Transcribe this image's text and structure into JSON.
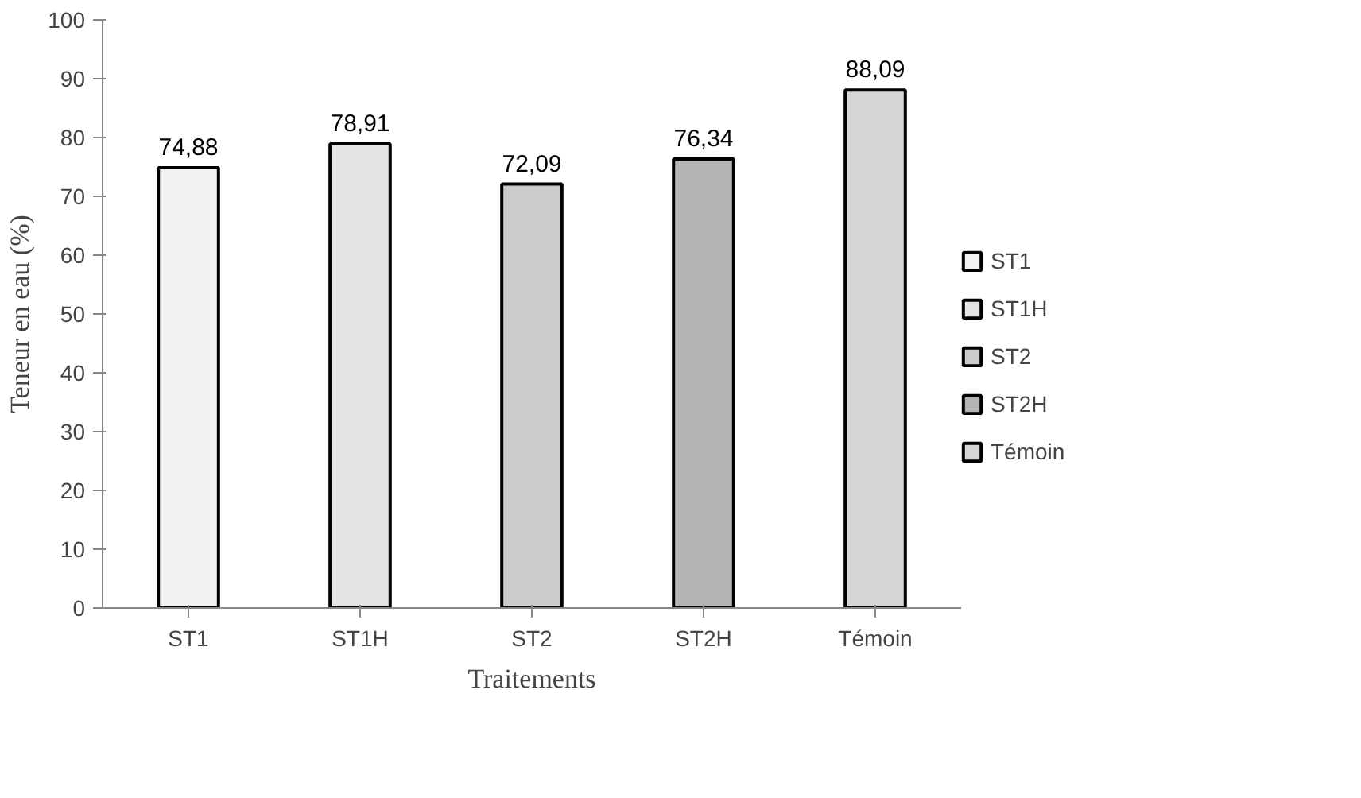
{
  "chart_data": {
    "type": "bar",
    "xlabel": "Traitements",
    "ylabel": "Teneur en eau (%)",
    "categories": [
      "ST1",
      "ST1H",
      "ST2",
      "ST2H",
      "Témoin"
    ],
    "series": [
      {
        "name": "ST1",
        "color": "#f2f2f2",
        "values": [
          74.88,
          null,
          null,
          null,
          null
        ],
        "value_labels": [
          "74,88",
          null,
          null,
          null,
          null
        ]
      },
      {
        "name": "ST1H",
        "color": "#e4e4e4",
        "values": [
          null,
          78.91,
          null,
          null,
          null
        ],
        "value_labels": [
          null,
          "78,91",
          null,
          null,
          null
        ]
      },
      {
        "name": "ST2",
        "color": "#cccccc",
        "values": [
          null,
          null,
          72.09,
          null,
          null
        ],
        "value_labels": [
          null,
          null,
          "72,09",
          null,
          null
        ]
      },
      {
        "name": "ST2H",
        "color": "#b4b4b4",
        "values": [
          null,
          null,
          null,
          76.34,
          null
        ],
        "value_labels": [
          null,
          null,
          null,
          "76,34",
          null
        ]
      },
      {
        "name": "Témoin",
        "color": "#d6d6d6",
        "values": [
          null,
          null,
          null,
          null,
          88.09
        ],
        "value_labels": [
          null,
          null,
          null,
          null,
          "88,09"
        ]
      }
    ],
    "ylim": [
      0,
      100
    ],
    "yticks": [
      0,
      10,
      20,
      30,
      40,
      50,
      60,
      70,
      80,
      90,
      100
    ],
    "grid": false,
    "legend": "right"
  }
}
